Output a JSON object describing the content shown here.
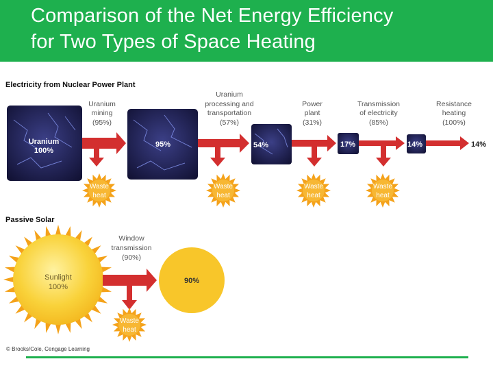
{
  "header": {
    "title_line1": "Comparison of the Net Energy Efficiency",
    "title_line2": "for Two Types of Space Heating"
  },
  "nuclear": {
    "title": "Electricity from Nuclear Power Plant",
    "source_label_1": "Uranium",
    "source_label_2": "100%",
    "steps": [
      {
        "label_lines": [
          "Uranium",
          "mining",
          "(95%)"
        ],
        "result": "95%",
        "waste": [
          "Waste",
          "heat"
        ]
      },
      {
        "label_lines": [
          "Uranium",
          "processing and",
          "transportation",
          "(57%)"
        ],
        "result": "54%",
        "waste": [
          "Waste",
          "heat"
        ]
      },
      {
        "label_lines": [
          "Power",
          "plant",
          "(31%)"
        ],
        "result": "17%",
        "waste": [
          "Waste",
          "heat"
        ]
      },
      {
        "label_lines": [
          "Transmission",
          "of electricity",
          "(85%)"
        ],
        "result": "14%",
        "waste": [
          "Waste",
          "heat"
        ]
      },
      {
        "label_lines": [
          "Resistance",
          "heating",
          "(100%)"
        ],
        "result": "14%"
      }
    ]
  },
  "solar": {
    "title": "Passive Solar",
    "source_label_1": "Sunlight",
    "source_label_2": "100%",
    "step_label_lines": [
      "Window",
      "transmission",
      "(90%)"
    ],
    "result": "90%",
    "waste": [
      "Waste",
      "heat"
    ]
  },
  "credit": "© Brooks/Cole, Cengage Learning",
  "colors": {
    "header": "#1eb04e",
    "arrow": "#d32f2f",
    "box": "#1c1b4a",
    "sun": "#f6c21d",
    "burst": "#f4a21a"
  }
}
